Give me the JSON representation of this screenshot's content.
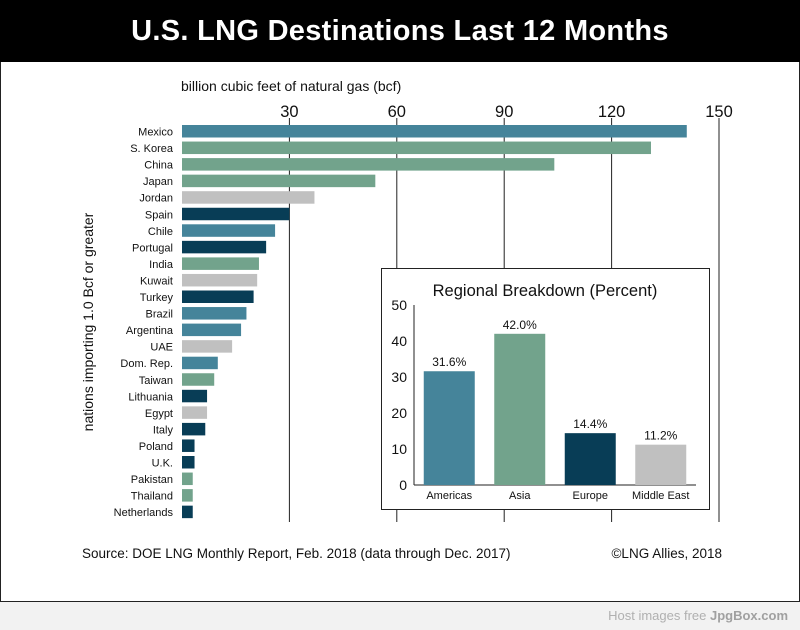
{
  "header": {
    "title": "U.S. LNG Destinations Last 12 Months"
  },
  "footer": {
    "source": "Source: DOE LNG Monthly Report, Feb. 2018 (data through Dec. 2017)",
    "copyright": "©LNG Allies, 2018",
    "host_prefix": "Host images free ",
    "host_brand": "JpgBox.com"
  },
  "colors": {
    "americas": "#45849a",
    "asia": "#72a38c",
    "europe": "#083d56",
    "middle_east": "#c0c0c0"
  },
  "chart_data": [
    {
      "type": "bar",
      "orientation": "horizontal",
      "title": "",
      "xlabel": "billion cubic feet of natural gas (bcf)",
      "ylabel": "nations importing 1.0 Bcf or greater",
      "xlim": [
        0,
        150
      ],
      "xticks": [
        30,
        60,
        90,
        120,
        150
      ],
      "grid": true,
      "categories": [
        "Mexico",
        "S. Korea",
        "China",
        "Japan",
        "Jordan",
        "Spain",
        "Chile",
        "Portugal",
        "India",
        "Kuwait",
        "Turkey",
        "Brazil",
        "Argentina",
        "UAE",
        "Dom. Rep.",
        "Taiwan",
        "Lithuania",
        "Egypt",
        "Italy",
        "Poland",
        "U.K.",
        "Pakistan",
        "Thailand",
        "Netherlands"
      ],
      "values": [
        141,
        131,
        104,
        54,
        37,
        30,
        26,
        23.5,
        21.5,
        21,
        20,
        18,
        16.5,
        14,
        10,
        9,
        7,
        7,
        6.5,
        3.5,
        3.5,
        3,
        3,
        3
      ],
      "regions": [
        "americas",
        "asia",
        "asia",
        "asia",
        "middle_east",
        "europe",
        "americas",
        "europe",
        "asia",
        "middle_east",
        "europe",
        "americas",
        "americas",
        "middle_east",
        "americas",
        "asia",
        "europe",
        "middle_east",
        "europe",
        "europe",
        "europe",
        "asia",
        "asia",
        "europe"
      ]
    },
    {
      "type": "bar",
      "title": "Regional Breakdown (Percent)",
      "categories": [
        "Americas",
        "Asia",
        "Europe",
        "Middle East"
      ],
      "values": [
        31.6,
        42.0,
        14.4,
        11.2
      ],
      "value_labels": [
        "31.6%",
        "42.0%",
        "14.4%",
        "11.2%"
      ],
      "regions": [
        "americas",
        "asia",
        "europe",
        "middle_east"
      ],
      "ylim": [
        0,
        50
      ],
      "yticks": [
        0,
        10,
        20,
        30,
        40,
        50
      ]
    }
  ]
}
